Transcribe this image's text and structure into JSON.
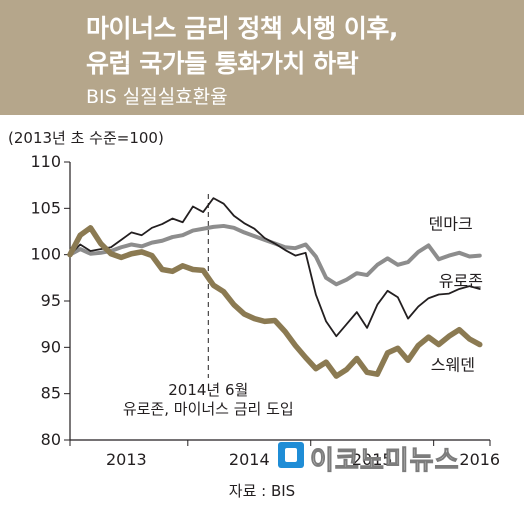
{
  "header": {
    "title_line1": "마이너스 금리 정책 시행 이후,",
    "title_line2": "유럽 국가들 통화가치 하락",
    "subtitle": "BIS 실질실효환율",
    "background": "#b5a68b"
  },
  "unit_label": "(2013년 초 수준=100)",
  "source": "자료 : BIS",
  "watermark": {
    "text": "이코노미뉴스",
    "icon": "news-logo-icon",
    "color": "#1f8dd6"
  },
  "chart_data": {
    "type": "line",
    "title": "BIS 실질실효환율",
    "ylabel": "(2013년 초 수준=100)",
    "ylim": [
      80,
      110
    ],
    "yticks": [
      80,
      85,
      90,
      95,
      100,
      105,
      110
    ],
    "xlim": [
      0,
      41
    ],
    "x_tick_labels": [
      {
        "label": "2013",
        "x": 5.5
      },
      {
        "label": "2014",
        "x": 17.5
      },
      {
        "label": "2015",
        "x": 29.5
      },
      {
        "label": "2016",
        "x": 40
      }
    ],
    "x_ticks_at": [
      0,
      11.5,
      23.5,
      35.5,
      41
    ],
    "grid": false,
    "annotation": {
      "x": 13.5,
      "text_line1": "2014년 6월",
      "text_line2": "유로존, 마이너스 금리 도입"
    },
    "series": [
      {
        "name": "덴마크",
        "color": "#8d8d8d",
        "values": [
          100.0,
          100.6,
          100.1,
          100.2,
          100.4,
          100.8,
          101.1,
          100.9,
          101.3,
          101.5,
          101.9,
          102.1,
          102.6,
          102.8,
          103.0,
          103.1,
          102.9,
          102.4,
          102.0,
          101.6,
          101.2,
          100.8,
          100.7,
          101.1,
          99.8,
          97.5,
          96.8,
          97.3,
          98.0,
          97.8,
          98.9,
          99.6,
          98.9,
          99.2,
          100.3,
          101.0,
          99.5,
          99.9,
          100.2,
          99.8,
          99.9
        ]
      },
      {
        "name": "유로존",
        "color": "#231f20",
        "values": [
          100.0,
          101.1,
          100.4,
          100.6,
          100.8,
          101.6,
          102.4,
          102.1,
          102.9,
          103.3,
          103.9,
          103.5,
          105.2,
          104.6,
          106.1,
          105.5,
          104.2,
          103.4,
          102.8,
          101.8,
          101.2,
          100.5,
          99.9,
          100.2,
          95.7,
          92.8,
          91.2,
          92.5,
          93.8,
          92.1,
          94.6,
          96.1,
          95.4,
          93.1,
          94.4,
          95.3,
          95.7,
          95.8,
          96.3,
          96.6,
          96.3
        ]
      },
      {
        "name": "스웨덴",
        "color": "#8b7a52",
        "values": [
          100.0,
          102.1,
          102.9,
          101.2,
          100.1,
          99.7,
          100.1,
          100.3,
          99.9,
          98.4,
          98.2,
          98.8,
          98.4,
          98.3,
          96.7,
          96.0,
          94.6,
          93.6,
          93.1,
          92.8,
          92.9,
          91.7,
          90.2,
          88.9,
          87.7,
          88.4,
          86.9,
          87.6,
          88.8,
          87.3,
          87.1,
          89.4,
          89.9,
          88.6,
          90.2,
          91.1,
          90.3,
          91.2,
          91.9,
          90.9,
          90.3
        ]
      }
    ],
    "series_label_anchor": [
      35,
      36,
      36
    ]
  }
}
